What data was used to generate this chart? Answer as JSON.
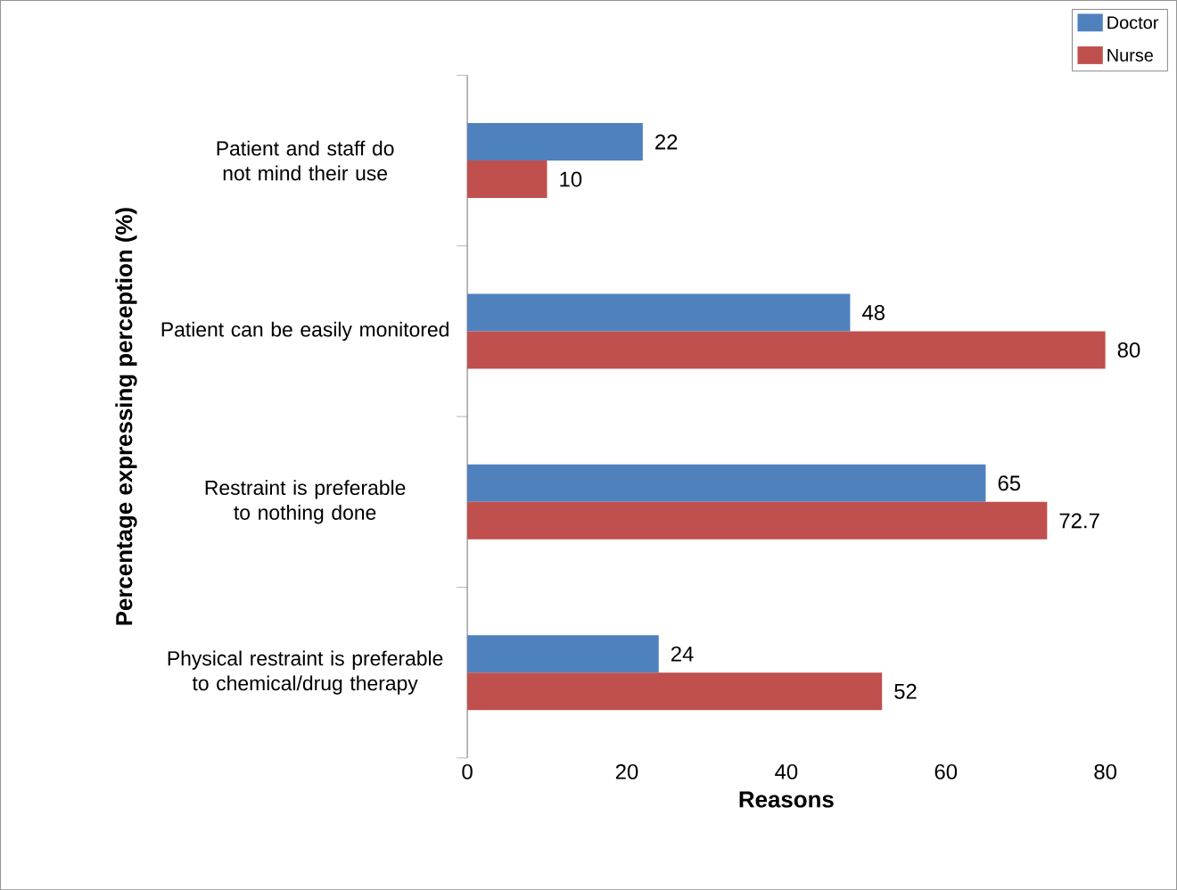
{
  "chart_data": {
    "type": "bar",
    "orientation": "horizontal",
    "xlabel": "Reasons",
    "ylabel": "Percentage expressing perception (%)",
    "categories": [
      "Patient and staff do not mind their use",
      "Patient can be easily monitored",
      "Restraint is preferable to nothing done",
      "Physical restraint is preferable to chemical/drug therapy"
    ],
    "series": [
      {
        "name": "Doctor",
        "color": "#4f81bd",
        "values": [
          22,
          48,
          65,
          24
        ]
      },
      {
        "name": "Nurse",
        "color": "#c0504d",
        "values": [
          10,
          80,
          72.7,
          52
        ]
      }
    ],
    "xlim": [
      0,
      80
    ],
    "xticks": [
      0,
      20,
      40,
      60,
      80
    ],
    "legend": "top right",
    "data_labels": true
  }
}
